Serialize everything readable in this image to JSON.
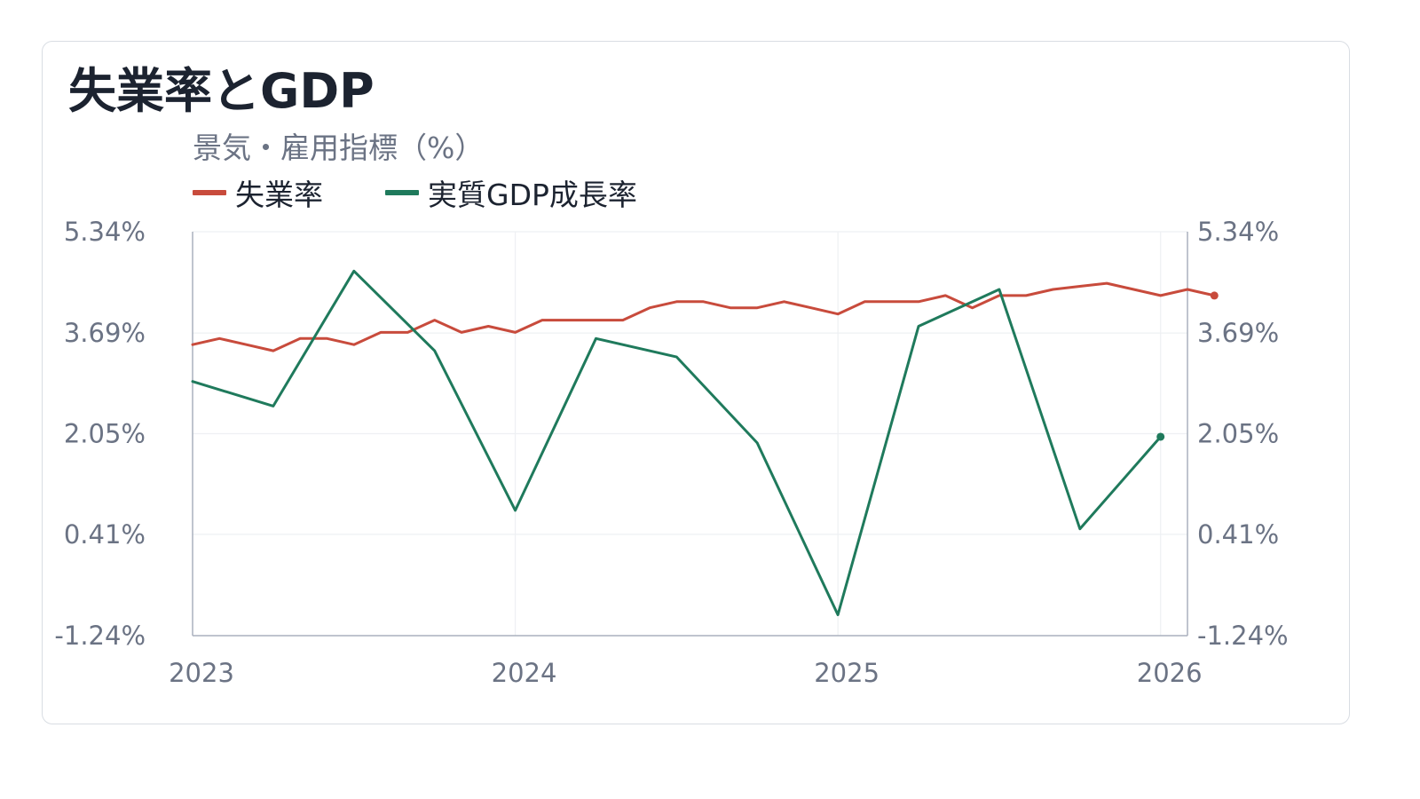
{
  "chart_data": {
    "type": "line",
    "title": "失業率とGDP",
    "subtitle": "景気・雇用指標（%）",
    "x_ticks": [
      "2023",
      "2024",
      "2025",
      "2026"
    ],
    "y_ticks": [
      "5.34%",
      "3.69%",
      "2.05%",
      "0.41%",
      "-1.24%"
    ],
    "y_tick_values": [
      5.34,
      3.69,
      2.05,
      0.41,
      -1.24
    ],
    "ylim": [
      -1.24,
      5.34
    ],
    "xlim": [
      "2023-01",
      "2026-02"
    ],
    "grid": true,
    "legend_position": "top-left",
    "series": [
      {
        "name": "失業率",
        "color": "#c84b3c",
        "x": [
          "2023-01",
          "2023-02",
          "2023-03",
          "2023-04",
          "2023-05",
          "2023-06",
          "2023-07",
          "2023-08",
          "2023-09",
          "2023-10",
          "2023-11",
          "2023-12",
          "2024-01",
          "2024-02",
          "2024-03",
          "2024-04",
          "2024-05",
          "2024-06",
          "2024-07",
          "2024-08",
          "2024-09",
          "2024-10",
          "2024-11",
          "2024-12",
          "2025-01",
          "2025-02",
          "2025-03",
          "2025-04",
          "2025-05",
          "2025-06",
          "2025-07",
          "2025-08",
          "2025-09",
          "2025-10",
          "2025-11",
          "2025-12",
          "2026-01",
          "2026-02",
          "2026-03"
        ],
        "values": [
          3.5,
          3.6,
          3.5,
          3.4,
          3.6,
          3.6,
          3.5,
          3.7,
          3.7,
          3.9,
          3.7,
          3.8,
          3.7,
          3.9,
          3.9,
          3.9,
          3.9,
          4.1,
          4.2,
          4.2,
          4.1,
          4.1,
          4.2,
          4.1,
          4.0,
          4.2,
          4.2,
          4.2,
          4.3,
          4.1,
          4.3,
          4.3,
          4.4,
          4.45,
          4.5,
          4.4,
          4.3,
          4.4,
          4.3
        ]
      },
      {
        "name": "実質GDP成長率",
        "color": "#1f7a5c",
        "x": [
          "2023-01",
          "2023-04",
          "2023-07",
          "2023-10",
          "2024-01",
          "2024-04",
          "2024-07",
          "2024-10",
          "2025-01",
          "2025-04",
          "2025-07",
          "2025-10",
          "2026-01"
        ],
        "values": [
          2.9,
          2.5,
          4.7,
          3.4,
          0.8,
          3.6,
          3.3,
          1.9,
          -0.9,
          3.8,
          4.4,
          0.5,
          2.0
        ]
      }
    ]
  }
}
